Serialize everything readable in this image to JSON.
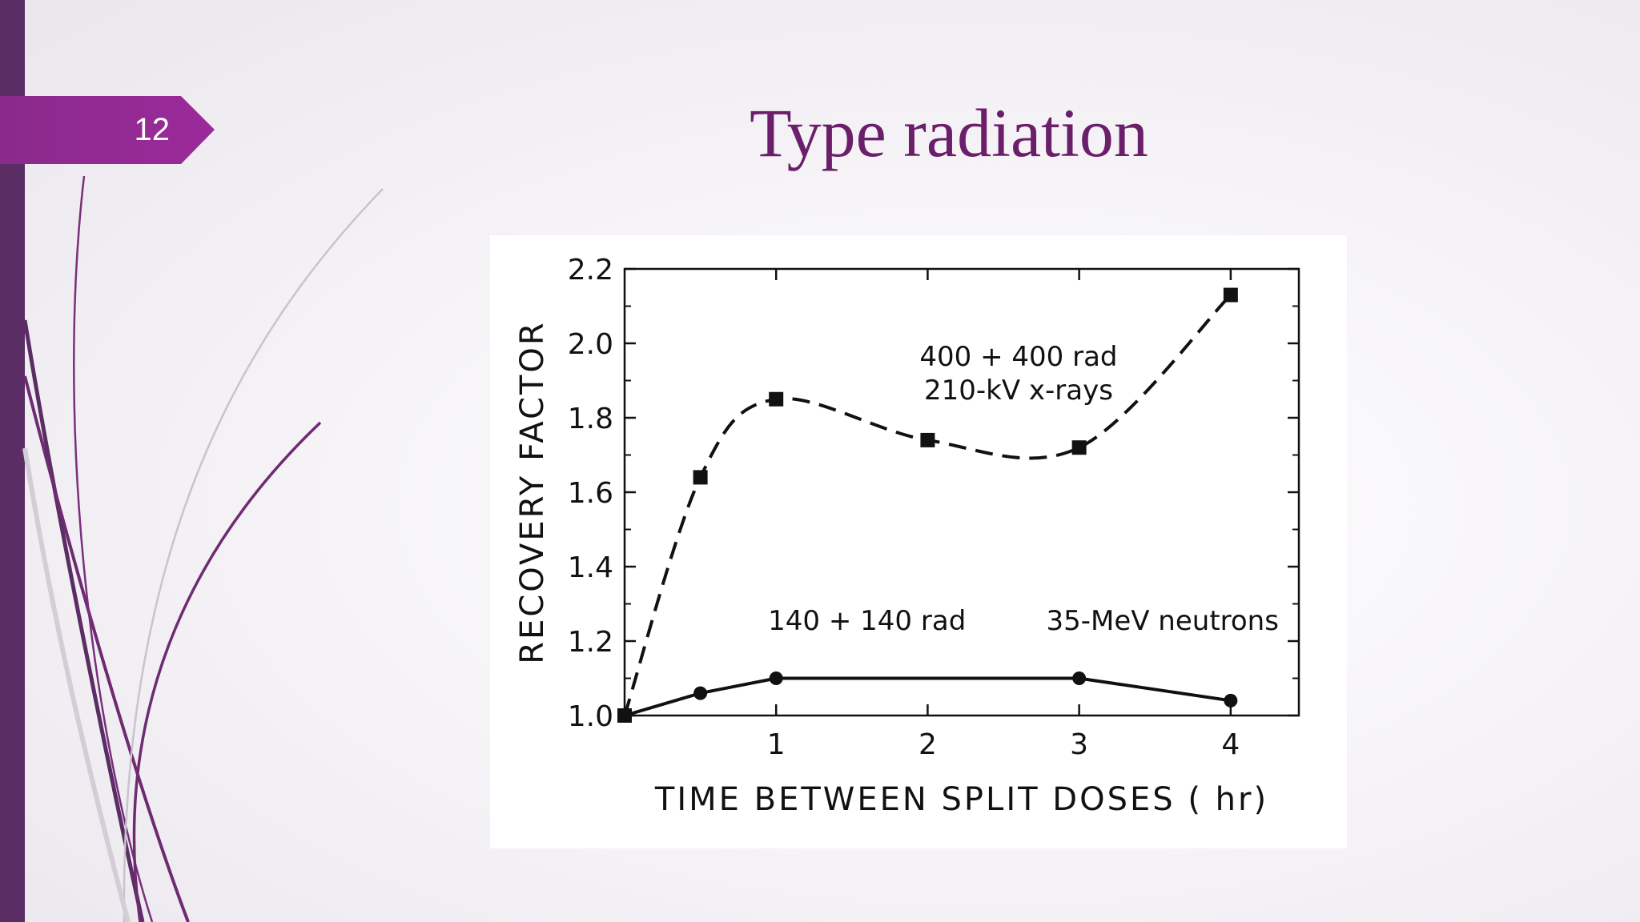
{
  "slide": {
    "number": "12",
    "title": "Type radiation"
  },
  "colors": {
    "left_bar": "#5a2d64",
    "tab": "#9b2a9a",
    "title": "#6b1f6b",
    "ink": "#111111"
  },
  "chart_data": {
    "type": "line",
    "title": "",
    "xlabel": "TIME  BETWEEN  SPLIT  DOSES   ( hr)",
    "ylabel": "RECOVERY  FACTOR",
    "xlim": [
      0,
      4.45
    ],
    "ylim": [
      1.0,
      2.2
    ],
    "xticks": [
      1,
      2,
      3,
      4
    ],
    "xtick_labels": [
      "1",
      "2",
      "3",
      "4"
    ],
    "yticks": [
      1.0,
      1.2,
      1.4,
      1.6,
      1.8,
      2.0,
      2.2
    ],
    "ytick_labels": [
      "1.0",
      "1.2",
      "1.4",
      "1.6",
      "1.8",
      "2.0",
      "2.2"
    ],
    "grid": false,
    "series": [
      {
        "style": "dashed",
        "marker": "square",
        "x": [
          0,
          0.5,
          1,
          2,
          3,
          4
        ],
        "y": [
          1.0,
          1.64,
          1.85,
          1.74,
          1.72,
          2.13
        ]
      },
      {
        "style": "solid",
        "marker": "circle",
        "x": [
          0,
          0.5,
          1,
          3,
          4
        ],
        "y": [
          1.0,
          1.06,
          1.1,
          1.1,
          1.04
        ]
      }
    ],
    "annotations": [
      {
        "text": "400 + 400 rad",
        "x": 2.6,
        "y": 1.94
      },
      {
        "text": "210-kV  x-rays",
        "x": 2.6,
        "y": 1.85
      },
      {
        "text": "140 + 140 rad",
        "x": 1.6,
        "y": 1.23
      },
      {
        "text": "35-MeV neutrons",
        "x": 3.55,
        "y": 1.23
      }
    ]
  }
}
